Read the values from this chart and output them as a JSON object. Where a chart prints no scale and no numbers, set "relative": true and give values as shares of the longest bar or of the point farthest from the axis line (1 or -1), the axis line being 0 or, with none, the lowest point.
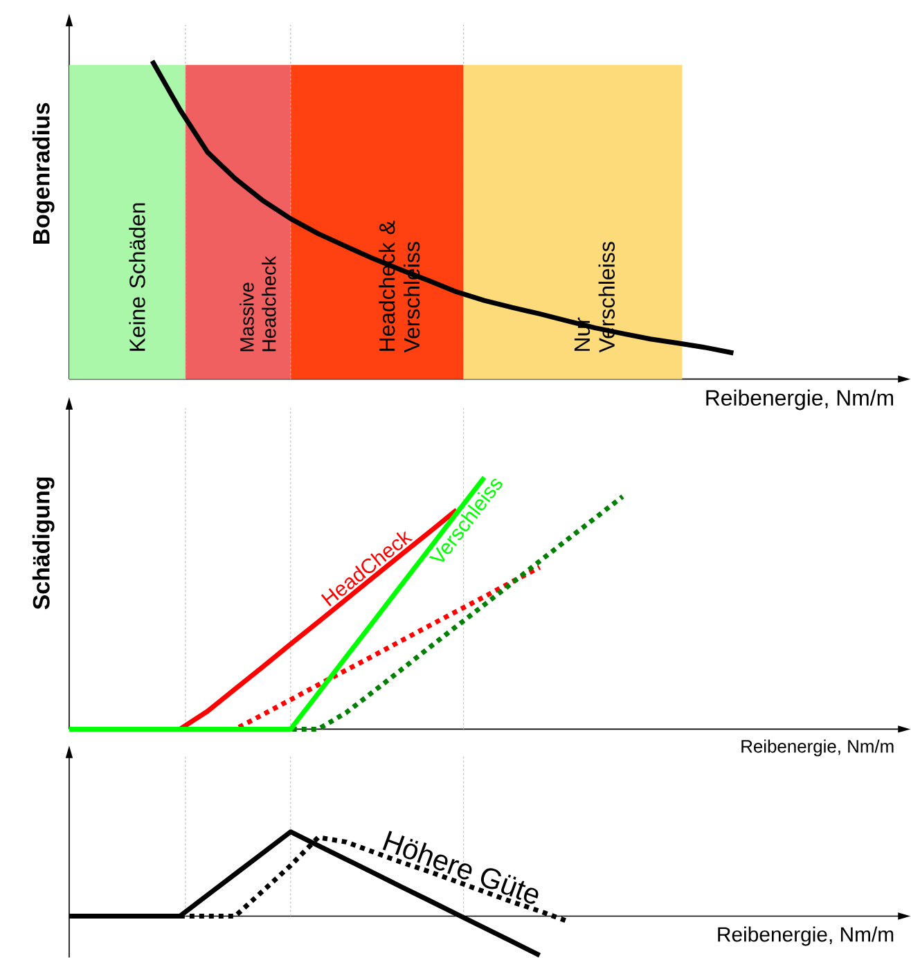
{
  "chart_data": [
    {
      "type": "line",
      "relative": true,
      "tick_labels": false,
      "xlabel": "Reibenergie, Nm/m",
      "ylabel": "Bogenradius",
      "annotations": [
        "Keine Schäden",
        "Massive Headcheck",
        "Headcheck & Verschleiss",
        "Nur Verschleiss"
      ],
      "categories": [
        null,
        null,
        null,
        null,
        null,
        null,
        null,
        null,
        null,
        null,
        null,
        null,
        null,
        null,
        null,
        null,
        null,
        null,
        null,
        null,
        null,
        null,
        null,
        null,
        null,
        null,
        null,
        null,
        null,
        null,
        null
      ],
      "series": [
        {
          "color": "#000000",
          "line_style": "solid",
          "values": [
            null,
            null,
            null,
            1.0,
            0.847,
            0.713,
            0.63,
            0.561,
            0.504,
            0.457,
            0.417,
            0.378,
            0.343,
            0.309,
            0.274,
            0.247,
            0.225,
            0.205,
            0.183,
            0.161,
            0.143,
            0.126,
            0.113,
            0.099,
            0.082,
            null,
            null,
            null,
            null,
            null,
            null
          ]
        }
      ]
    },
    {
      "type": "line",
      "relative": true,
      "tick_labels": false,
      "xlabel": "Reibenergie, Nm/m",
      "ylabel": "Schädigung",
      "categories": [
        null,
        null,
        null,
        null,
        null,
        null,
        null,
        null,
        null,
        null,
        null,
        null,
        null,
        null,
        null,
        null,
        null,
        null,
        null,
        null,
        null,
        null,
        null,
        null,
        null,
        null,
        null,
        null,
        null,
        null,
        null
      ],
      "series": [
        {
          "color": "#ff0000",
          "line_style": "dotted",
          "values": [
            null,
            null,
            null,
            0,
            0,
            0,
            0,
            0.058,
            0.117,
            0.176,
            0.234,
            0.292,
            0.351,
            0.41,
            0.468,
            0.526,
            0.585,
            0.643,
            null,
            null,
            null,
            null,
            null,
            null,
            null,
            null,
            null,
            null,
            null,
            null,
            null
          ]
        },
        {
          "color": "#008000",
          "line_style": "dotted",
          "values": [
            null,
            null,
            null,
            null,
            null,
            null,
            null,
            0,
            0,
            0,
            0.065,
            0.15,
            0.236,
            0.323,
            0.409,
            0.494,
            0.58,
            0.667,
            0.753,
            0.838,
            0.924,
            null,
            null,
            null,
            null,
            null,
            null,
            null,
            null,
            null,
            null
          ]
        },
        {
          "name": "HeadCheck",
          "color": "#ff0000",
          "line_style": "solid",
          "values": [
            null,
            null,
            null,
            0,
            0,
            0.071,
            0.16,
            0.248,
            0.338,
            0.426,
            0.515,
            0.604,
            0.693,
            0.781,
            0.871,
            null,
            null,
            null,
            null,
            null,
            null,
            null,
            null,
            null,
            null,
            null,
            null,
            null,
            null,
            null,
            null
          ]
        },
        {
          "name": "Verschleiss",
          "color": "#00ff00",
          "line_style": "solid",
          "values": [
            0,
            0,
            0,
            0,
            0,
            0,
            0,
            0,
            0,
            0.142,
            0.286,
            0.428,
            0.572,
            0.714,
            0.858,
            1.0,
            null,
            null,
            null,
            null,
            null,
            null,
            null,
            null,
            null,
            null,
            null,
            null,
            null,
            null,
            null
          ]
        }
      ]
    },
    {
      "type": "line",
      "relative": true,
      "tick_labels": false,
      "xlabel": "Reibenergie, Nm/m",
      "categories": [
        null,
        null,
        null,
        null,
        null,
        null,
        null,
        null,
        null,
        null,
        null,
        null,
        null,
        null,
        null,
        null,
        null,
        null,
        null,
        null,
        null,
        null,
        null,
        null,
        null,
        null,
        null,
        null,
        null,
        null,
        null
      ],
      "series": [
        {
          "color": "#000000",
          "line_style": "solid",
          "values": [
            0,
            0,
            0,
            0,
            0,
            0.25,
            0.5,
            0.75,
            1.0,
            0.837,
            0.675,
            0.512,
            0.349,
            0.187,
            0.024,
            -0.138,
            -0.301,
            -0.464,
            null,
            null,
            null,
            null,
            null,
            null,
            null,
            null,
            null,
            null,
            null,
            null,
            null
          ]
        },
        {
          "name": "Höhere Güte",
          "color": "#000000",
          "line_style": "dotted",
          "values": [
            null,
            null,
            null,
            null,
            0,
            0,
            0,
            0.3,
            0.6,
            0.935,
            0.88,
            0.76,
            0.64,
            0.53,
            0.41,
            0.29,
            0.17,
            0.06,
            -0.06,
            null,
            null,
            null,
            null,
            null,
            null,
            null,
            null,
            null,
            null,
            null,
            null
          ]
        }
      ]
    }
  ]
}
